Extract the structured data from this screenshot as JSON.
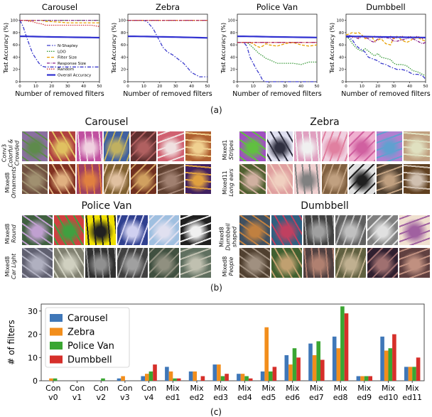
{
  "captions": {
    "a": "(a)",
    "b": "(b)",
    "c": "(c)"
  },
  "line_charts": {
    "xlabel": "Number of removed filters",
    "ylabel": "Test Accuracy (%)",
    "xticks": [
      0,
      10,
      20,
      30,
      40,
      50
    ],
    "yticks": [
      0,
      20,
      40,
      60,
      80,
      100
    ],
    "legend": [
      "N-Shapley",
      "LOO",
      "Filter Size",
      "Response Size",
      "Random",
      "Overall Accuracy"
    ],
    "series_styles": [
      {
        "name": "N-Shapley",
        "color": "#3b3bcc",
        "dash": "5,2,1.5,2",
        "width": 1.3
      },
      {
        "name": "LOO",
        "color": "#3a9a3a",
        "dash": "1.5,1.5",
        "width": 1.3
      },
      {
        "name": "Filter Size",
        "color": "#e8a000",
        "dash": "4,2",
        "width": 1.3
      },
      {
        "name": "Response Size",
        "color": "#8a1f8a",
        "dash": "4,1.5,1,1.5",
        "width": 1.3
      },
      {
        "name": "Random",
        "color": "#d23030",
        "dash": "1.5,1.5",
        "width": 1.3
      },
      {
        "name": "Overall Accuracy",
        "color": "#3030d0",
        "dash": "",
        "width": 2.2
      }
    ]
  },
  "chart_data": [
    {
      "type": "line",
      "title": "Carousel",
      "xlabel": "Number of removed filters",
      "ylabel": "Test Accuracy (%)",
      "xlim": [
        0,
        50
      ],
      "ylim": [
        0,
        110
      ],
      "x": [
        0,
        2,
        4,
        6,
        8,
        10,
        12,
        14,
        16,
        18,
        20,
        25,
        30,
        35,
        40,
        45,
        50
      ],
      "series": [
        {
          "name": "N-Shapley",
          "values": [
            100,
            90,
            74,
            60,
            46,
            38,
            30,
            25,
            24,
            24,
            24,
            24,
            24,
            24,
            24,
            24,
            24
          ]
        },
        {
          "name": "LOO",
          "values": [
            100,
            100,
            100,
            100,
            100,
            100,
            100,
            100,
            100,
            100,
            100,
            100,
            100,
            100,
            100,
            100,
            100
          ]
        },
        {
          "name": "Filter Size",
          "values": [
            100,
            100,
            100,
            100,
            100,
            100,
            100,
            100,
            98,
            98,
            98,
            97,
            96,
            96,
            96,
            96,
            96
          ]
        },
        {
          "name": "Response Size",
          "values": [
            100,
            100,
            100,
            100,
            100,
            100,
            100,
            100,
            100,
            100,
            100,
            100,
            100,
            100,
            100,
            100,
            100
          ]
        },
        {
          "name": "Random",
          "values": [
            100,
            100,
            100,
            98,
            98,
            96,
            95,
            94,
            92,
            92,
            92,
            92,
            92,
            92,
            92,
            92,
            90
          ]
        },
        {
          "name": "Overall Accuracy",
          "values": [
            74,
            74,
            74,
            73.8,
            73.6,
            73.5,
            73.4,
            73.3,
            73.2,
            73.1,
            73,
            72.8,
            72.6,
            72.4,
            72.2,
            72,
            71.8
          ]
        }
      ]
    },
    {
      "type": "line",
      "title": "Zebra",
      "xlabel": "Number of removed filters",
      "ylabel": "Test Accuracy (%)",
      "xlim": [
        0,
        50
      ],
      "ylim": [
        0,
        110
      ],
      "x": [
        0,
        2,
        4,
        6,
        8,
        10,
        12,
        14,
        16,
        18,
        20,
        22,
        25,
        28,
        30,
        35,
        40,
        45,
        50
      ],
      "series": [
        {
          "name": "N-Shapley",
          "values": [
            100,
            100,
            100,
            100,
            100,
            100,
            98,
            92,
            86,
            76,
            66,
            56,
            48,
            44,
            40,
            30,
            15,
            8,
            8
          ]
        },
        {
          "name": "LOO",
          "values": [
            100,
            100,
            100,
            100,
            100,
            100,
            100,
            100,
            100,
            100,
            100,
            100,
            100,
            100,
            100,
            100,
            100,
            100,
            100
          ]
        },
        {
          "name": "Filter Size",
          "values": [
            100,
            100,
            100,
            100,
            100,
            100,
            100,
            100,
            100,
            100,
            100,
            100,
            100,
            100,
            100,
            100,
            100,
            100,
            100
          ]
        },
        {
          "name": "Response Size",
          "values": [
            100,
            100,
            100,
            100,
            100,
            100,
            100,
            100,
            100,
            100,
            100,
            100,
            100,
            100,
            100,
            100,
            100,
            100,
            100
          ]
        },
        {
          "name": "Random",
          "values": [
            100,
            100,
            100,
            100,
            100,
            100,
            100,
            100,
            100,
            100,
            100,
            100,
            100,
            100,
            100,
            100,
            100,
            100,
            100
          ]
        },
        {
          "name": "Overall Accuracy",
          "values": [
            74,
            74,
            74,
            73.9,
            73.8,
            73.7,
            73.6,
            73.5,
            73.4,
            73.3,
            73.2,
            73.1,
            73,
            72.8,
            72.7,
            72.4,
            72.1,
            71.8,
            71.5
          ]
        }
      ]
    },
    {
      "type": "line",
      "title": "Police Van",
      "xlabel": "Number of removed filters",
      "ylabel": "Test Accuracy (%)",
      "xlim": [
        0,
        50
      ],
      "ylim": [
        0,
        110
      ],
      "x": [
        0,
        2,
        4,
        6,
        8,
        10,
        12,
        14,
        16,
        18,
        20,
        25,
        30,
        35,
        40,
        45,
        50
      ],
      "series": [
        {
          "name": "N-Shapley",
          "values": [
            64,
            64,
            64,
            58,
            40,
            30,
            20,
            12,
            2,
            0,
            0,
            0,
            0,
            0,
            0,
            0,
            0
          ]
        },
        {
          "name": "LOO",
          "values": [
            64,
            64,
            64,
            64,
            60,
            55,
            50,
            45,
            42,
            38,
            36,
            30,
            30,
            30,
            28,
            32,
            32
          ]
        },
        {
          "name": "Filter Size",
          "values": [
            64,
            64,
            64,
            64,
            64,
            62,
            58,
            56,
            58,
            62,
            60,
            58,
            62,
            64,
            60,
            58,
            60
          ]
        },
        {
          "name": "Response Size",
          "values": [
            64,
            64,
            64,
            64,
            64,
            64,
            64,
            64,
            64,
            64,
            64,
            64,
            64,
            64,
            64,
            64,
            64
          ]
        },
        {
          "name": "Random",
          "values": [
            64,
            64,
            64,
            64,
            64,
            64,
            64,
            64,
            64,
            64,
            64,
            64,
            64,
            64,
            64,
            64,
            64
          ]
        },
        {
          "name": "Overall Accuracy",
          "values": [
            74,
            74,
            74,
            73.9,
            73.8,
            73.7,
            73.6,
            73.5,
            73.4,
            73.3,
            73.2,
            73,
            72.8,
            72.6,
            72.4,
            72.2,
            72
          ]
        }
      ]
    },
    {
      "type": "line",
      "title": "Dumbbell",
      "xlabel": "Number of removed filters",
      "ylabel": "Test Accuracy (%)",
      "xlim": [
        0,
        50
      ],
      "ylim": [
        0,
        110
      ],
      "x": [
        0,
        2,
        4,
        6,
        8,
        10,
        12,
        14,
        16,
        18,
        20,
        22,
        25,
        28,
        30,
        32,
        35,
        38,
        40,
        42,
        45,
        48,
        50
      ],
      "series": [
        {
          "name": "N-Shapley",
          "values": [
            73,
            72,
            68,
            60,
            55,
            52,
            48,
            40,
            38,
            36,
            34,
            30,
            28,
            24,
            22,
            20,
            20,
            18,
            15,
            12,
            12,
            10,
            4
          ]
        },
        {
          "name": "LOO",
          "values": [
            73,
            70,
            62,
            56,
            52,
            50,
            54,
            50,
            46,
            42,
            46,
            40,
            38,
            36,
            30,
            28,
            28,
            26,
            22,
            18,
            16,
            12,
            10
          ]
        },
        {
          "name": "Filter Size",
          "values": [
            76,
            78,
            80,
            79,
            80,
            76,
            70,
            72,
            74,
            66,
            68,
            70,
            62,
            60,
            72,
            74,
            68,
            64,
            66,
            70,
            72,
            68,
            66
          ]
        },
        {
          "name": "Response Size",
          "values": [
            73,
            76,
            74,
            72,
            70,
            74,
            72,
            70,
            66,
            64,
            70,
            72,
            72,
            70,
            66,
            66,
            68,
            70,
            72,
            70,
            66,
            62,
            64
          ]
        },
        {
          "name": "Random",
          "values": [
            73,
            74,
            72,
            74,
            72,
            74,
            72,
            74,
            72,
            74,
            72,
            74,
            72,
            74,
            70,
            72,
            74,
            72,
            74,
            72,
            74,
            70,
            72
          ]
        },
        {
          "name": "Overall Accuracy",
          "values": [
            74,
            74,
            73.9,
            73.8,
            73.7,
            73.6,
            73.5,
            73.4,
            73.3,
            73.2,
            73.1,
            73,
            72.9,
            72.8,
            72.7,
            72.6,
            72.5,
            72.4,
            72.3,
            72.2,
            72.1,
            72,
            71.9
          ]
        }
      ]
    },
    {
      "type": "bar",
      "ylabel": "# of filters",
      "ylim": [
        0,
        33
      ],
      "yticks": [
        0,
        10,
        20,
        30
      ],
      "categories": [
        "Con v0",
        "Con v1",
        "Con v2",
        "Con v3",
        "Con v4",
        "Mix ed1",
        "Mix ed2",
        "Mix ed3",
        "Mix ed4",
        "Mix ed5",
        "Mix ed6",
        "Mix ed7",
        "Mix ed8",
        "Mix ed9",
        "Mix ed10",
        "Mix ed11"
      ],
      "category_lines": [
        [
          "Con",
          "v0"
        ],
        [
          "Con",
          "v1"
        ],
        [
          "Con",
          "v2"
        ],
        [
          "Con",
          "v3"
        ],
        [
          "Con",
          "v4"
        ],
        [
          "Mix",
          "ed1"
        ],
        [
          "Mix",
          "ed2"
        ],
        [
          "Mix",
          "ed3"
        ],
        [
          "Mix",
          "ed4"
        ],
        [
          "Mix",
          "ed5"
        ],
        [
          "Mix",
          "ed6"
        ],
        [
          "Mix",
          "ed7"
        ],
        [
          "Mix",
          "ed8"
        ],
        [
          "Mix",
          "ed9"
        ],
        [
          "Mix",
          "ed10"
        ],
        [
          "Mix",
          "ed11"
        ]
      ],
      "legend_position": "top-left",
      "series": [
        {
          "name": "Carousel",
          "color": "#3f77b8",
          "values": [
            0,
            0,
            0,
            1,
            2,
            6,
            4,
            7,
            3,
            4,
            11,
            16,
            19,
            2,
            19,
            6
          ]
        },
        {
          "name": "Zebra",
          "color": "#f28e1c",
          "values": [
            1,
            0,
            0,
            2,
            3,
            4,
            4,
            7,
            3,
            23,
            7,
            11,
            14,
            2,
            13,
            6
          ]
        },
        {
          "name": "Police Van",
          "color": "#3aa632",
          "values": [
            1,
            0,
            1,
            0,
            4,
            1,
            0,
            2,
            2,
            4,
            14,
            17,
            32,
            2,
            14,
            6
          ]
        },
        {
          "name": "Dumbbell",
          "color": "#d62f2a",
          "values": [
            0,
            0,
            0,
            0,
            7,
            1,
            2,
            3,
            1,
            6,
            10,
            9,
            29,
            2,
            20,
            10
          ]
        }
      ]
    }
  ],
  "gallery": [
    {
      "title": "Carousel",
      "rows": [
        {
          "layer": "Conv3",
          "desc": [
            "Colorful &",
            "Crowded"
          ]
        },
        {
          "layer": "Mixed8",
          "desc": [
            "Ornaments"
          ]
        }
      ]
    },
    {
      "title": "Zebra",
      "rows": [
        {
          "layer": "Mixed1",
          "desc": [
            "Stripes"
          ]
        },
        {
          "layer": "Mixed11",
          "desc": [
            "Long ears"
          ]
        }
      ]
    },
    {
      "title": "Police Van",
      "rows": [
        {
          "layer": "Mixed8",
          "desc": [
            "Round"
          ]
        },
        {
          "layer": "Mixed8",
          "desc": [
            "Car Light"
          ]
        }
      ]
    },
    {
      "title": "Dumbbell",
      "rows": [
        {
          "layer": "Mixed8",
          "desc": [
            "Dumbbell",
            "shaped"
          ]
        },
        {
          "layer": "Mixed8",
          "desc": [
            "People"
          ]
        }
      ]
    }
  ],
  "thumb_colors": [
    [
      [
        "#8a6fa0",
        "#5e8a4c"
      ],
      [
        "#b04040",
        "#e0c060"
      ],
      [
        "#c050a0",
        "#f0d0e0"
      ],
      [
        "#4060a0",
        "#c0b060"
      ],
      [
        "#603030",
        "#b06060"
      ],
      [
        "#d06070",
        "#f0e0e0"
      ],
      [
        "#b06030",
        "#f0d090"
      ]
    ],
    [
      [
        "#705040",
        "#a09070"
      ],
      [
        "#803020",
        "#e0b080"
      ],
      [
        "#a04060",
        "#e08040"
      ],
      [
        "#806030",
        "#e0c0a0"
      ],
      [
        "#703020",
        "#d0a060"
      ],
      [
        "#604030",
        "#a08070"
      ],
      [
        "#402060",
        "#e0a040"
      ]
    ],
    [
      [
        "#a050c0",
        "#60c040"
      ],
      [
        "#e0e0f0",
        "#303040"
      ],
      [
        "#e0a0c0",
        "#f0f0f0"
      ],
      [
        "#f0d0e0",
        "#e080a0"
      ],
      [
        "#f0b0d0",
        "#d060a0"
      ],
      [
        "#b080d0",
        "#60a0d0"
      ],
      [
        "#c0a080",
        "#e0e0c0"
      ]
    ],
    [
      [
        "#506030",
        "#d0b0a0"
      ],
      [
        "#e0a0a0",
        "#f0d0c0"
      ],
      [
        "#f0d0d0",
        "#808080"
      ],
      [
        "#806040",
        "#c0a080"
      ],
      [
        "#e0e0e0",
        "#202020"
      ],
      [
        "#504030",
        "#c0a080"
      ],
      [
        "#604020",
        "#d0c0b0"
      ]
    ],
    [
      [
        "#406040",
        "#c0a0d0"
      ],
      [
        "#d04040",
        "#40a040"
      ],
      [
        "#f0e000",
        "#202020"
      ],
      [
        "#304090",
        "#d0d0f0"
      ],
      [
        "#a0c0e0",
        "#e0e0f0"
      ],
      [
        "#202020",
        "#f0f0f0"
      ]
    ],
    [
      [
        "#606070",
        "#b0b0c0"
      ],
      [
        "#808070",
        "#d0d0c0"
      ],
      [
        "#303030",
        "#909090"
      ],
      [
        "#404040",
        "#a0a0a0"
      ],
      [
        "#405040",
        "#909080"
      ],
      [
        "#607060",
        "#c0c0b0"
      ]
    ],
    [
      [
        "#405060",
        "#c08040"
      ],
      [
        "#306080",
        "#c04060"
      ],
      [
        "#404040",
        "#a0a0a0"
      ],
      [
        "#606060",
        "#c0c0c0"
      ],
      [
        "#808080",
        "#e0e0e0"
      ],
      [
        "#f0e0d0",
        "#a060a0"
      ]
    ],
    [
      [
        "#504030",
        "#a09080"
      ],
      [
        "#406030",
        "#c0a070"
      ],
      [
        "#504040",
        "#b08070"
      ],
      [
        "#606040",
        "#c0b090"
      ],
      [
        "#302030",
        "#a07070"
      ],
      [
        "#604040",
        "#c09080"
      ]
    ]
  ]
}
